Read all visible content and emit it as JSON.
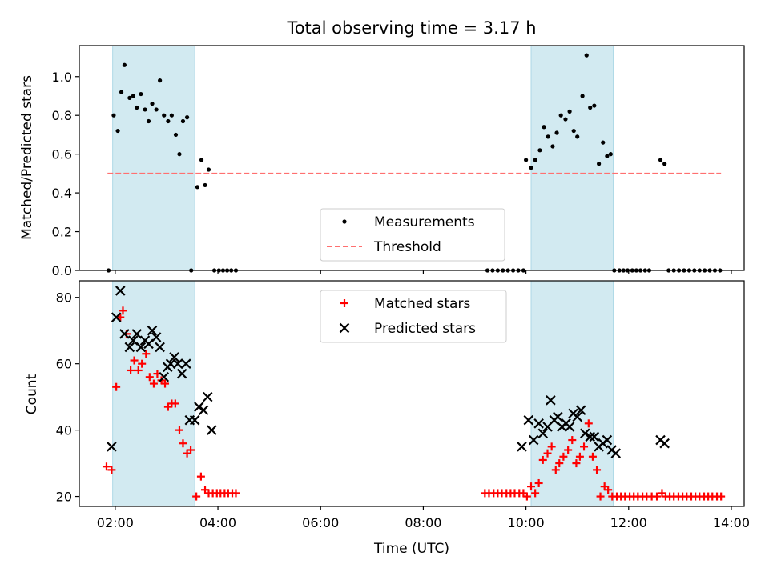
{
  "title": "Total observing time = 3.17 h",
  "colors": {
    "shade": "#add8e6",
    "threshold": "#ff7070",
    "matched": "#ff0000",
    "predicted": "#000000",
    "measure": "#000000"
  },
  "chart_data": [
    {
      "type": "scatter",
      "title": "Total observing time = 3.17 h",
      "ylabel": "Matched/Predicted stars",
      "xlabel": "",
      "xlim": [
        1.3,
        14.25
      ],
      "ylim": [
        0,
        1.16
      ],
      "yticks": [
        0,
        0.2,
        0.4,
        0.6,
        0.8,
        1.0
      ],
      "ytick_labels": [
        "0.0",
        "0.2",
        "0.4",
        "0.6",
        "0.8",
        "1.0"
      ],
      "xticks": [
        2,
        4,
        6,
        8,
        10,
        12,
        14
      ],
      "shaded_intervals": [
        [
          1.95,
          3.55
        ],
        [
          10.1,
          11.7
        ]
      ],
      "legend": {
        "location": "lower center",
        "entries": [
          "Measurements",
          "Threshold"
        ]
      },
      "series": [
        {
          "name": "Measurements",
          "marker": "dot",
          "x": [
            1.87,
            1.97,
            2.05,
            2.12,
            2.18,
            2.28,
            2.35,
            2.42,
            2.5,
            2.58,
            2.65,
            2.72,
            2.8,
            2.87,
            2.95,
            3.03,
            3.1,
            3.18,
            3.25,
            3.32,
            3.4,
            3.48,
            3.6,
            3.68,
            3.75,
            3.82,
            3.93,
            4.02,
            4.1,
            4.18,
            4.26,
            4.35,
            9.25,
            9.35,
            9.45,
            9.55,
            9.65,
            9.75,
            9.85,
            9.95,
            10.0,
            10.1,
            10.18,
            10.27,
            10.35,
            10.43,
            10.52,
            10.6,
            10.68,
            10.77,
            10.85,
            10.93,
            11.0,
            11.1,
            11.18,
            11.25,
            11.33,
            11.42,
            11.5,
            11.58,
            11.65,
            11.72,
            11.82,
            11.9,
            11.98,
            12.07,
            12.15,
            12.23,
            12.32,
            12.4,
            12.62,
            12.7,
            12.78,
            12.88,
            12.98,
            13.08,
            13.18,
            13.28,
            13.38,
            13.48,
            13.58,
            13.68,
            13.78
          ],
          "y": [
            0.0,
            0.8,
            0.72,
            0.92,
            1.06,
            0.89,
            0.9,
            0.84,
            0.91,
            0.83,
            0.77,
            0.86,
            0.83,
            0.98,
            0.8,
            0.77,
            0.8,
            0.7,
            0.6,
            0.77,
            0.79,
            0.0,
            0.43,
            0.57,
            0.44,
            0.52,
            0.0,
            0.0,
            0.0,
            0.0,
            0.0,
            0.0,
            0.0,
            0.0,
            0.0,
            0.0,
            0.0,
            0.0,
            0.0,
            0.0,
            0.57,
            0.53,
            0.57,
            0.62,
            0.74,
            0.69,
            0.64,
            0.71,
            0.8,
            0.78,
            0.82,
            0.72,
            0.69,
            0.9,
            1.11,
            0.84,
            0.85,
            0.55,
            0.66,
            0.59,
            0.6,
            0.0,
            0.0,
            0.0,
            0.0,
            0.0,
            0.0,
            0.0,
            0.0,
            0.0,
            0.57,
            0.55,
            0.0,
            0.0,
            0.0,
            0.0,
            0.0,
            0.0,
            0.0,
            0.0,
            0.0,
            0.0,
            0.0
          ]
        },
        {
          "name": "Threshold",
          "marker": "dashed-line",
          "x": [
            1.85,
            13.8
          ],
          "y": [
            0.5,
            0.5
          ]
        }
      ]
    },
    {
      "type": "scatter",
      "title": "",
      "ylabel": "Count",
      "xlabel": "Time (UTC)",
      "xlim": [
        1.3,
        14.25
      ],
      "ylim": [
        17,
        85
      ],
      "yticks": [
        20,
        40,
        60,
        80
      ],
      "ytick_labels": [
        "20",
        "40",
        "60",
        "80"
      ],
      "xticks": [
        2,
        4,
        6,
        8,
        10,
        12,
        14
      ],
      "xtick_labels": [
        "02:00",
        "04:00",
        "06:00",
        "08:00",
        "10:00",
        "12:00",
        "14:00"
      ],
      "shaded_intervals": [
        [
          1.95,
          3.55
        ],
        [
          10.1,
          11.7
        ]
      ],
      "legend": {
        "location": "upper center",
        "entries": [
          "Matched stars",
          "Predicted stars"
        ]
      },
      "series": [
        {
          "name": "Matched stars",
          "marker": "plus",
          "x": [
            1.83,
            1.93,
            2.02,
            2.1,
            2.15,
            2.22,
            2.3,
            2.37,
            2.45,
            2.52,
            2.6,
            2.67,
            2.75,
            2.82,
            2.9,
            2.97,
            3.03,
            3.1,
            3.17,
            3.25,
            3.32,
            3.4,
            3.47,
            3.58,
            3.67,
            3.75,
            3.82,
            3.9,
            3.98,
            4.05,
            4.13,
            4.2,
            4.28,
            4.35,
            9.2,
            9.28,
            9.37,
            9.45,
            9.53,
            9.62,
            9.7,
            9.78,
            9.87,
            9.95,
            10.02,
            10.1,
            10.18,
            10.25,
            10.33,
            10.42,
            10.5,
            10.58,
            10.65,
            10.73,
            10.82,
            10.9,
            10.98,
            11.05,
            11.13,
            11.22,
            11.3,
            11.38,
            11.45,
            11.53,
            11.6,
            11.68,
            11.77,
            11.85,
            11.93,
            12.02,
            12.1,
            12.18,
            12.27,
            12.35,
            12.45,
            12.55,
            12.65,
            12.72,
            12.8,
            12.88,
            12.97,
            13.05,
            13.13,
            13.22,
            13.3,
            13.38,
            13.47,
            13.55,
            13.63,
            13.72,
            13.8
          ],
          "y": [
            29,
            28,
            53,
            74,
            76,
            69,
            58,
            61,
            58,
            60,
            63,
            56,
            54,
            57,
            55,
            54,
            47,
            48,
            48,
            40,
            36,
            33,
            34,
            20,
            26,
            22,
            21,
            21,
            21,
            21,
            21,
            21,
            21,
            21,
            21,
            21,
            21,
            21,
            21,
            21,
            21,
            21,
            21,
            21,
            20,
            23,
            21,
            24,
            31,
            33,
            35,
            28,
            30,
            32,
            34,
            37,
            30,
            32,
            35,
            42,
            32,
            28,
            20,
            23,
            22,
            20,
            20,
            20,
            20,
            20,
            20,
            20,
            20,
            20,
            20,
            20,
            21,
            20,
            20,
            20,
            20,
            20,
            20,
            20,
            20,
            20,
            20,
            20,
            20,
            20,
            20
          ]
        },
        {
          "name": "Predicted stars",
          "marker": "x",
          "x": [
            1.93,
            2.02,
            2.1,
            2.18,
            2.28,
            2.35,
            2.42,
            2.5,
            2.58,
            2.65,
            2.72,
            2.8,
            2.87,
            2.95,
            3.02,
            3.08,
            3.15,
            3.22,
            3.3,
            3.38,
            3.45,
            3.55,
            3.63,
            3.72,
            3.8,
            3.88,
            9.92,
            10.05,
            10.15,
            10.25,
            10.33,
            10.42,
            10.48,
            10.55,
            10.62,
            10.7,
            10.78,
            10.85,
            10.92,
            11.0,
            11.07,
            11.15,
            11.25,
            11.33,
            11.42,
            11.5,
            11.58,
            11.67,
            11.75,
            12.62,
            12.7
          ],
          "y": [
            35,
            74,
            82,
            69,
            65,
            67,
            69,
            65,
            67,
            66,
            70,
            68,
            65,
            56,
            59,
            60,
            62,
            60,
            57,
            60,
            43,
            43,
            47,
            46,
            50,
            40,
            35,
            43,
            37,
            42,
            39,
            41,
            49,
            43,
            44,
            41,
            42,
            41,
            45,
            44,
            46,
            39,
            38,
            38,
            35,
            36,
            37,
            34,
            33,
            37,
            36
          ]
        }
      ]
    }
  ]
}
